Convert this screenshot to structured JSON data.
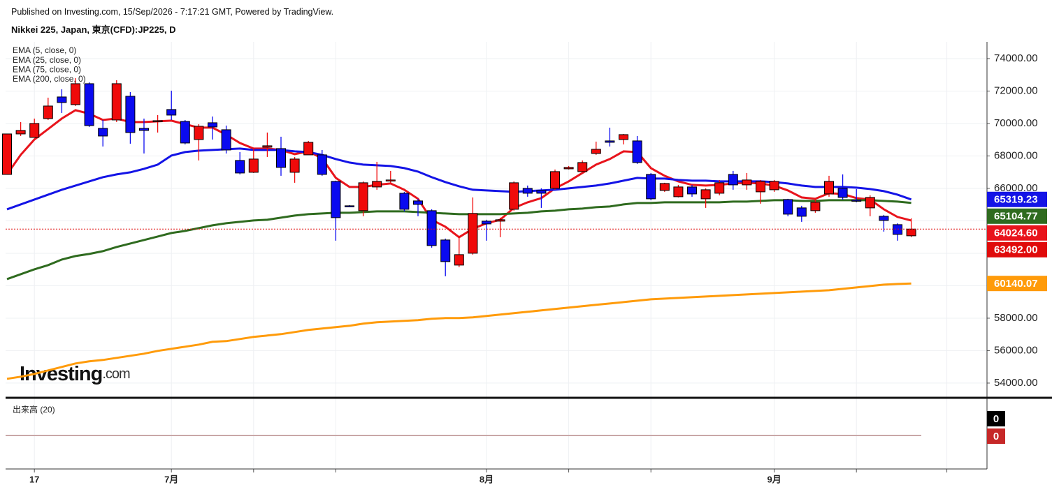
{
  "header": {
    "published": "Published on Investing.com, 15/Sep/2026 - 7:17:21 GMT, Powered by TradingView.",
    "instrument": "Nikkei 225, Japan, 東京(CFD):JP225, D"
  },
  "chart_data": {
    "type": "candlestick",
    "categories": [
      null,
      null,
      "17",
      null,
      null,
      null,
      null,
      null,
      null,
      null,
      null,
      null,
      "7月",
      null,
      null,
      null,
      null,
      null,
      null,
      null,
      null,
      null,
      null,
      null,
      null,
      null,
      null,
      null,
      null,
      null,
      null,
      null,
      null,
      null,
      null,
      "8月",
      null,
      null,
      null,
      null,
      null,
      null,
      null,
      null,
      null,
      null,
      null,
      null,
      null,
      null,
      null,
      null,
      null,
      null,
      null,
      null,
      "9月",
      null,
      null,
      null,
      null,
      null,
      null,
      null,
      null,
      null,
      null
    ],
    "open": [
      66860,
      69356,
      69141,
      70302,
      71635,
      71162,
      72452,
      69700,
      70216,
      71678,
      69700,
      70130,
      70861,
      70130,
      69012,
      70044,
      69614,
      67722,
      66991,
      68540,
      68453,
      66991,
      68066,
      68066,
      66432,
      64927,
      64626,
      66088,
      66475,
      65701,
      65228,
      64626,
      62820,
      61272,
      62003,
      63981,
      63981,
      64712,
      66002,
      65873,
      66002,
      67206,
      67034,
      68152,
      68926,
      69012,
      68926,
      66862,
      65873,
      65486,
      66088,
      65357,
      65701,
      66862,
      66217,
      65787,
      65916,
      65314,
      64798,
      64626,
      65658,
      66002,
      65271,
      64798,
      64282,
      63766,
      63078
    ],
    "high": [
      69355,
      70087,
      70302,
      71592,
      72108,
      72796,
      72538,
      70216,
      72667,
      71936,
      70302,
      70517,
      72022,
      70216,
      69958,
      70431,
      69872,
      68238,
      68496,
      69442,
      69184,
      67937,
      68926,
      68367,
      66475,
      64970,
      66432,
      67636,
      67077,
      65787,
      65357,
      64712,
      62906,
      63078,
      65443,
      64067,
      64196,
      66432,
      66174,
      66002,
      67163,
      67378,
      67722,
      68883,
      69743,
      69356,
      69227,
      66948,
      66346,
      66217,
      66217,
      66002,
      66518,
      67077,
      66948,
      66518,
      66518,
      65357,
      64927,
      65357,
      66776,
      66862,
      65959,
      65572,
      64368,
      63852,
      64153
    ],
    "low": [
      66860,
      69227,
      69141,
      70216,
      70646,
      71076,
      69786,
      68582,
      70087,
      68754,
      68152,
      69442,
      70216,
      68711,
      67722,
      69012,
      68152,
      66862,
      66948,
      67937,
      66776,
      66346,
      68066,
      66776,
      62777,
      64841,
      64282,
      65916,
      66346,
      64583,
      64282,
      62347,
      60584,
      61143,
      61917,
      62777,
      62992,
      64626,
      65486,
      64798,
      65916,
      67163,
      66991,
      68066,
      68582,
      68711,
      67507,
      65271,
      65787,
      65443,
      65486,
      64798,
      65572,
      65916,
      65916,
      65056,
      65787,
      64282,
      63938,
      64497,
      65486,
      65314,
      65142,
      64282,
      63336,
      62777,
      62992
    ],
    "close": [
      69355,
      69571,
      70001,
      71076,
      71291,
      72452,
      69871,
      69227,
      72452,
      69442,
      69571,
      70173,
      70517,
      68797,
      69829,
      69786,
      68367,
      66948,
      67808,
      68625,
      67292,
      67808,
      68840,
      66862,
      64196,
      64884,
      66346,
      66432,
      66518,
      64712,
      65013,
      62476,
      61487,
      61917,
      64454,
      63809,
      64067,
      66346,
      65701,
      65701,
      67034,
      67292,
      67593,
      68410,
      68840,
      69313,
      67593,
      65357,
      66303,
      66088,
      65658,
      65916,
      66346,
      66217,
      66518,
      66432,
      66432,
      64411,
      64282,
      65142,
      66432,
      65443,
      65228,
      65443,
      64024,
      63164,
      63492
    ],
    "close_value_labels": [
      null,
      null,
      null,
      null,
      null,
      null,
      null,
      null,
      null,
      null,
      null,
      null,
      null,
      null,
      null,
      null,
      null,
      null,
      null,
      null,
      null,
      null,
      null,
      null,
      null,
      null,
      null,
      null,
      null,
      null,
      null,
      null,
      null,
      null,
      null,
      null,
      null,
      null,
      null,
      null,
      null,
      null,
      null,
      null,
      null,
      null,
      null,
      null,
      null,
      null,
      null,
      null,
      null,
      null,
      null,
      null,
      null,
      null,
      null,
      null,
      null,
      null,
      null,
      null,
      null,
      null,
      "63492.00"
    ],
    "up_color": "#f00a0a",
    "down_color": "#0a0af0",
    "close_tag_color": "#e00b0b",
    "series": [
      {
        "name": "EMA (5, close, 0)",
        "color": "#e8141c",
        "values": [
          66862,
          68066,
          69012,
          69657,
          70302,
          70818,
          70603,
          70216,
          70302,
          70087,
          70087,
          70130,
          70173,
          69958,
          69743,
          69743,
          69313,
          68797,
          68453,
          68453,
          68367,
          68109,
          68281,
          67851,
          66647,
          66088,
          66088,
          66217,
          66303,
          65916,
          65357,
          64067,
          63637,
          62992,
          63508,
          63852,
          64067,
          64798,
          65142,
          65400,
          66002,
          66432,
          66948,
          67464,
          67808,
          68281,
          68238,
          67249,
          66776,
          66432,
          66217,
          66174,
          66217,
          66303,
          66346,
          66303,
          66174,
          65873,
          65443,
          65357,
          65701,
          65658,
          65400,
          65314,
          64712,
          64239,
          64024.6
        ],
        "value_labels": [
          null,
          null,
          null,
          null,
          null,
          null,
          null,
          null,
          null,
          null,
          null,
          null,
          null,
          null,
          null,
          null,
          null,
          null,
          null,
          null,
          null,
          null,
          null,
          null,
          null,
          null,
          null,
          null,
          null,
          null,
          null,
          null,
          null,
          null,
          null,
          null,
          null,
          null,
          null,
          null,
          null,
          null,
          null,
          null,
          null,
          null,
          null,
          null,
          null,
          null,
          null,
          null,
          null,
          null,
          null,
          null,
          null,
          null,
          null,
          null,
          null,
          null,
          null,
          null,
          null,
          null,
          "64024.60"
        ]
      },
      {
        "name": "EMA (25, close, 0)",
        "color": "#1414e6",
        "values": [
          64712,
          65013,
          65314,
          65615,
          65916,
          66174,
          66432,
          66690,
          66862,
          66991,
          67206,
          67464,
          68023,
          68238,
          68324,
          68367,
          68410,
          68453,
          68367,
          68367,
          68367,
          68281,
          68238,
          68066,
          67808,
          67593,
          67464,
          67421,
          67378,
          67249,
          67034,
          66690,
          66389,
          66131,
          65916,
          65873,
          65830,
          65787,
          65830,
          65873,
          65916,
          66002,
          66088,
          66174,
          66303,
          66475,
          66647,
          66604,
          66604,
          66518,
          66475,
          66475,
          66432,
          66432,
          66432,
          66432,
          66389,
          66303,
          66174,
          66088,
          66088,
          66088,
          66045,
          65959,
          65830,
          65615,
          65319.23
        ]
      },
      {
        "name": "EMA (75, close, 0)",
        "color": "#2f6b1f",
        "values": [
          60412,
          60713,
          61014,
          61272,
          61616,
          61831,
          61960,
          62132,
          62390,
          62605,
          62820,
          63035,
          63250,
          63379,
          63551,
          63723,
          63852,
          63938,
          64024,
          64067,
          64196,
          64325,
          64411,
          64454,
          64497,
          64497,
          64540,
          64583,
          64583,
          64583,
          64540,
          64497,
          64454,
          64411,
          64411,
          64411,
          64411,
          64454,
          64497,
          64583,
          64626,
          64712,
          64755,
          64841,
          64884,
          65013,
          65099,
          65099,
          65142,
          65142,
          65142,
          65142,
          65142,
          65185,
          65185,
          65228,
          65271,
          65271,
          65228,
          65228,
          65271,
          65271,
          65271,
          65271,
          65228,
          65185,
          65104.77
        ]
      },
      {
        "name": "EMA (200, close, 0)",
        "color": "#ff9b0a",
        "values": [
          54263,
          54392,
          54564,
          54779,
          54994,
          55209,
          55338,
          55424,
          55553,
          55682,
          55811,
          55983,
          56112,
          56241,
          56370,
          56542,
          56585,
          56714,
          56843,
          56929,
          57015,
          57144,
          57273,
          57359,
          57445,
          57531,
          57660,
          57746,
          57789,
          57832,
          57875,
          57961,
          58004,
          58004,
          58047,
          58133,
          58219,
          58305,
          58391,
          58477,
          58563,
          58649,
          58735,
          58821,
          58907,
          58993,
          59079,
          59165,
          59208,
          59251,
          59294,
          59337,
          59380,
          59423,
          59466,
          59509,
          59552,
          59595,
          59638,
          59681,
          59724,
          59810,
          59896,
          59982,
          60068,
          60111,
          60140.07
        ]
      }
    ],
    "ylim": [
      53180,
      75030
    ],
    "yticks": [
      {
        "value": 54000,
        "label": "54000.00"
      },
      {
        "value": 56000,
        "label": "56000.00"
      },
      {
        "value": 58000,
        "label": "58000.00"
      },
      {
        "value": 60000,
        "label": "60000.00"
      },
      {
        "value": 62000,
        "label": "62000.00"
      },
      {
        "value": 64000,
        "label": "64000.00"
      },
      {
        "value": 66000,
        "label": "66000.00"
      },
      {
        "value": 68000,
        "label": "68000.00"
      },
      {
        "value": 70000,
        "label": "70000.00"
      },
      {
        "value": 72000,
        "label": "72000.00"
      },
      {
        "value": 74000,
        "label": "74000.00"
      }
    ],
    "grid": true,
    "watermark": {
      "brand": "Investing",
      "suffix": ".com"
    },
    "volume": {
      "label": "出来高 (20)",
      "value": 0,
      "ma": 0,
      "value_color": "#000000",
      "ma_color": "#c62828"
    }
  }
}
